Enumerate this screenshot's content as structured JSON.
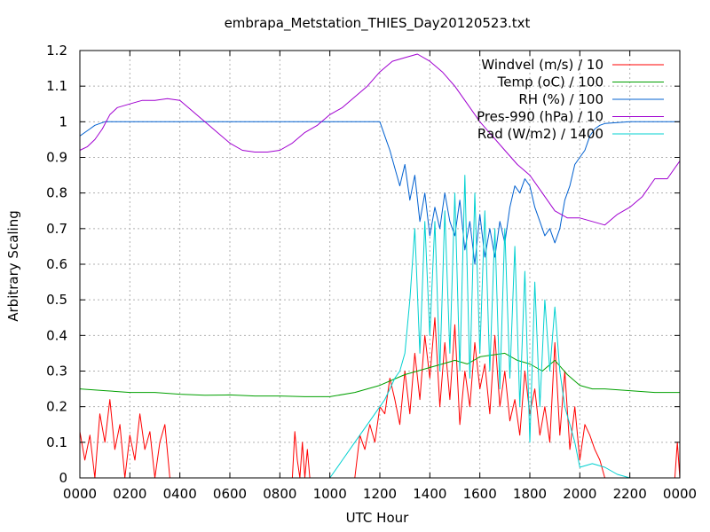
{
  "chart_data": {
    "type": "line",
    "title": "embrapa_Metstation_THIES_Day20120523.txt",
    "xlabel": "UTC Hour",
    "ylabel": "Arbitrary Scaling",
    "xlim": [
      0,
      2400
    ],
    "ylim": [
      0,
      1.2
    ],
    "grid": true,
    "legend_position": "top-right",
    "x_ticks": [
      "0000",
      "0200",
      "0400",
      "0600",
      "0800",
      "1000",
      "1200",
      "1400",
      "1600",
      "1800",
      "2000",
      "2200",
      "0000"
    ],
    "y_ticks": [
      "0",
      "0.1",
      "0.2",
      "0.3",
      "0.4",
      "0.5",
      "0.6",
      "0.7",
      "0.8",
      "0.9",
      "1",
      "1.1",
      "1.2"
    ],
    "series": [
      {
        "name": "Windvel (m/s) / 10",
        "color": "#ff0000",
        "x": [
          0,
          20,
          40,
          60,
          80,
          100,
          120,
          140,
          160,
          180,
          200,
          220,
          240,
          260,
          280,
          300,
          320,
          340,
          360,
          850,
          860,
          870,
          880,
          890,
          900,
          910,
          920,
          1100,
          1120,
          1140,
          1160,
          1180,
          1200,
          1220,
          1240,
          1260,
          1280,
          1300,
          1320,
          1340,
          1360,
          1380,
          1400,
          1420,
          1440,
          1460,
          1480,
          1500,
          1520,
          1540,
          1560,
          1580,
          1600,
          1620,
          1640,
          1660,
          1680,
          1700,
          1720,
          1740,
          1760,
          1780,
          1800,
          1820,
          1840,
          1860,
          1880,
          1900,
          1920,
          1940,
          1960,
          1980,
          2000,
          2020,
          2040,
          2060,
          2080,
          2100,
          2380,
          2390,
          2400
        ],
        "values": [
          0.13,
          0.05,
          0.12,
          0.0,
          0.18,
          0.1,
          0.22,
          0.08,
          0.15,
          0.0,
          0.12,
          0.05,
          0.18,
          0.08,
          0.13,
          0.0,
          0.1,
          0.15,
          0.0,
          0.0,
          0.13,
          0.05,
          0.0,
          0.1,
          0.0,
          0.08,
          0.0,
          0.0,
          0.12,
          0.08,
          0.15,
          0.1,
          0.2,
          0.18,
          0.28,
          0.22,
          0.15,
          0.3,
          0.18,
          0.35,
          0.22,
          0.4,
          0.28,
          0.45,
          0.2,
          0.38,
          0.22,
          0.43,
          0.15,
          0.3,
          0.2,
          0.38,
          0.25,
          0.32,
          0.18,
          0.4,
          0.2,
          0.3,
          0.16,
          0.22,
          0.12,
          0.3,
          0.18,
          0.25,
          0.12,
          0.2,
          0.1,
          0.38,
          0.12,
          0.3,
          0.08,
          0.2,
          0.05,
          0.15,
          0.12,
          0.08,
          0.05,
          0.0,
          0.0,
          0.1,
          0.0
        ]
      },
      {
        "name": "Temp (oC) / 100",
        "color": "#00a000",
        "x": [
          0,
          100,
          200,
          300,
          400,
          500,
          600,
          700,
          800,
          900,
          1000,
          1100,
          1150,
          1200,
          1250,
          1300,
          1350,
          1400,
          1450,
          1500,
          1550,
          1600,
          1650,
          1700,
          1750,
          1800,
          1850,
          1900,
          1950,
          2000,
          2050,
          2100,
          2200,
          2300,
          2400
        ],
        "values": [
          0.25,
          0.245,
          0.24,
          0.24,
          0.235,
          0.232,
          0.233,
          0.23,
          0.23,
          0.228,
          0.228,
          0.24,
          0.25,
          0.26,
          0.275,
          0.29,
          0.3,
          0.31,
          0.32,
          0.33,
          0.32,
          0.34,
          0.345,
          0.35,
          0.33,
          0.32,
          0.3,
          0.33,
          0.29,
          0.26,
          0.25,
          0.25,
          0.245,
          0.24,
          0.24
        ]
      },
      {
        "name": "RH (%) / 100",
        "color": "#0060d0",
        "x": [
          0,
          40,
          60,
          80,
          100,
          120,
          200,
          400,
          600,
          800,
          1000,
          1200,
          1220,
          1240,
          1260,
          1280,
          1300,
          1320,
          1340,
          1360,
          1380,
          1400,
          1420,
          1440,
          1460,
          1480,
          1500,
          1520,
          1540,
          1560,
          1580,
          1600,
          1620,
          1640,
          1660,
          1680,
          1700,
          1720,
          1740,
          1760,
          1780,
          1800,
          1820,
          1840,
          1860,
          1880,
          1900,
          1920,
          1940,
          1960,
          1980,
          2000,
          2020,
          2040,
          2060,
          2080,
          2100,
          2200,
          2300,
          2400
        ],
        "values": [
          0.96,
          0.98,
          0.99,
          0.995,
          1.0,
          1.0,
          1.0,
          1.0,
          1.0,
          1.0,
          1.0,
          1.0,
          0.96,
          0.92,
          0.87,
          0.82,
          0.88,
          0.78,
          0.85,
          0.72,
          0.8,
          0.68,
          0.76,
          0.7,
          0.8,
          0.72,
          0.68,
          0.78,
          0.64,
          0.72,
          0.6,
          0.74,
          0.62,
          0.7,
          0.62,
          0.72,
          0.66,
          0.76,
          0.82,
          0.8,
          0.84,
          0.82,
          0.76,
          0.72,
          0.68,
          0.7,
          0.66,
          0.7,
          0.78,
          0.82,
          0.88,
          0.9,
          0.92,
          0.96,
          0.98,
          0.99,
          0.995,
          1.0,
          1.0,
          1.0
        ]
      },
      {
        "name": "Pres-990 (hPa) / 10",
        "color": "#a000d0",
        "x": [
          0,
          30,
          60,
          90,
          120,
          150,
          200,
          250,
          300,
          350,
          400,
          450,
          500,
          550,
          600,
          650,
          700,
          750,
          800,
          850,
          900,
          950,
          1000,
          1050,
          1100,
          1150,
          1200,
          1250,
          1300,
          1350,
          1400,
          1450,
          1500,
          1550,
          1600,
          1650,
          1700,
          1750,
          1800,
          1850,
          1900,
          1950,
          2000,
          2050,
          2100,
          2150,
          2200,
          2250,
          2300,
          2350,
          2400
        ],
        "values": [
          0.92,
          0.93,
          0.95,
          0.98,
          1.02,
          1.04,
          1.05,
          1.06,
          1.06,
          1.065,
          1.06,
          1.03,
          1.0,
          0.97,
          0.94,
          0.92,
          0.915,
          0.915,
          0.92,
          0.94,
          0.97,
          0.99,
          1.02,
          1.04,
          1.07,
          1.1,
          1.14,
          1.17,
          1.18,
          1.19,
          1.17,
          1.14,
          1.1,
          1.05,
          1.0,
          0.96,
          0.92,
          0.88,
          0.85,
          0.8,
          0.75,
          0.73,
          0.73,
          0.72,
          0.71,
          0.74,
          0.76,
          0.79,
          0.84,
          0.84,
          0.89
        ]
      },
      {
        "name": "Rad (W/m2) / 1400",
        "color": "#00d0d0",
        "x": [
          1000,
          1050,
          1100,
          1150,
          1200,
          1220,
          1240,
          1260,
          1280,
          1300,
          1320,
          1340,
          1360,
          1380,
          1400,
          1420,
          1440,
          1460,
          1480,
          1500,
          1520,
          1540,
          1560,
          1580,
          1600,
          1620,
          1640,
          1660,
          1680,
          1700,
          1720,
          1740,
          1760,
          1780,
          1800,
          1820,
          1840,
          1860,
          1880,
          1900,
          1920,
          1940,
          1960,
          1980,
          2000,
          2050,
          2100,
          2150,
          2200
        ],
        "values": [
          0.0,
          0.05,
          0.1,
          0.15,
          0.2,
          0.22,
          0.25,
          0.28,
          0.3,
          0.35,
          0.5,
          0.7,
          0.35,
          0.72,
          0.4,
          0.72,
          0.3,
          0.75,
          0.35,
          0.8,
          0.3,
          0.85,
          0.28,
          0.8,
          0.35,
          0.75,
          0.3,
          0.7,
          0.25,
          0.7,
          0.28,
          0.65,
          0.2,
          0.58,
          0.1,
          0.55,
          0.2,
          0.5,
          0.3,
          0.48,
          0.3,
          0.2,
          0.15,
          0.1,
          0.03,
          0.04,
          0.03,
          0.01,
          0.0
        ]
      }
    ]
  }
}
